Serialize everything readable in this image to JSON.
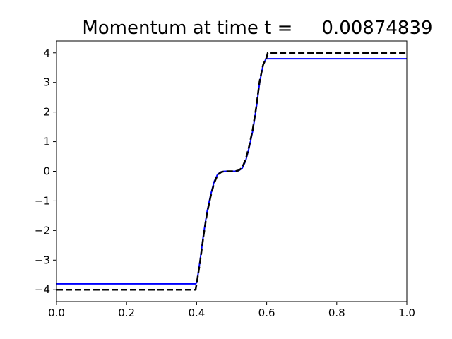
{
  "chart_data": {
    "type": "line",
    "title": "Momentum at time t =",
    "title_value": "0.00874839",
    "xlabel": "",
    "ylabel": "",
    "xlim": [
      0,
      1
    ],
    "ylim": [
      -4.4,
      4.4
    ],
    "xticks": [
      0.0,
      0.2,
      0.4,
      0.6,
      0.8,
      1.0
    ],
    "xtick_labels": [
      "0.0",
      "0.2",
      "0.4",
      "0.6",
      "0.8",
      "1.0"
    ],
    "yticks": [
      -4,
      -3,
      -2,
      -1,
      0,
      1,
      2,
      3,
      4
    ],
    "ytick_labels": [
      "−4",
      "−3",
      "−2",
      "−1",
      "0",
      "1",
      "2",
      "3",
      "4"
    ],
    "grid": false,
    "series": [
      {
        "color": "#0000ff",
        "style": "solid",
        "x": [
          0.0,
          0.398,
          0.402,
          0.41,
          0.42,
          0.43,
          0.44,
          0.45,
          0.46,
          0.47,
          0.48,
          0.49,
          0.5,
          0.51,
          0.52,
          0.53,
          0.54,
          0.55,
          0.56,
          0.57,
          0.58,
          0.59,
          0.598,
          0.602,
          1.0
        ],
        "y": [
          -3.8,
          -3.8,
          -3.65,
          -3.0,
          -2.1,
          -1.35,
          -0.8,
          -0.35,
          -0.1,
          -0.02,
          0.0,
          0.0,
          0.0,
          0.0,
          0.02,
          0.1,
          0.35,
          0.8,
          1.35,
          2.1,
          3.0,
          3.6,
          3.8,
          3.8,
          3.8
        ]
      },
      {
        "color": "#000000",
        "style": "dashed",
        "x": [
          0.0,
          0.397,
          0.4,
          0.41,
          0.42,
          0.43,
          0.44,
          0.45,
          0.46,
          0.47,
          0.48,
          0.49,
          0.5,
          0.51,
          0.52,
          0.53,
          0.54,
          0.55,
          0.56,
          0.57,
          0.58,
          0.59,
          0.6,
          0.603,
          1.0
        ],
        "y": [
          -4.0,
          -4.0,
          -3.8,
          -3.05,
          -2.15,
          -1.4,
          -0.85,
          -0.4,
          -0.12,
          -0.03,
          0.0,
          0.0,
          0.0,
          0.0,
          0.03,
          0.12,
          0.4,
          0.85,
          1.4,
          2.15,
          3.05,
          3.6,
          3.85,
          4.0,
          4.0
        ]
      }
    ]
  }
}
